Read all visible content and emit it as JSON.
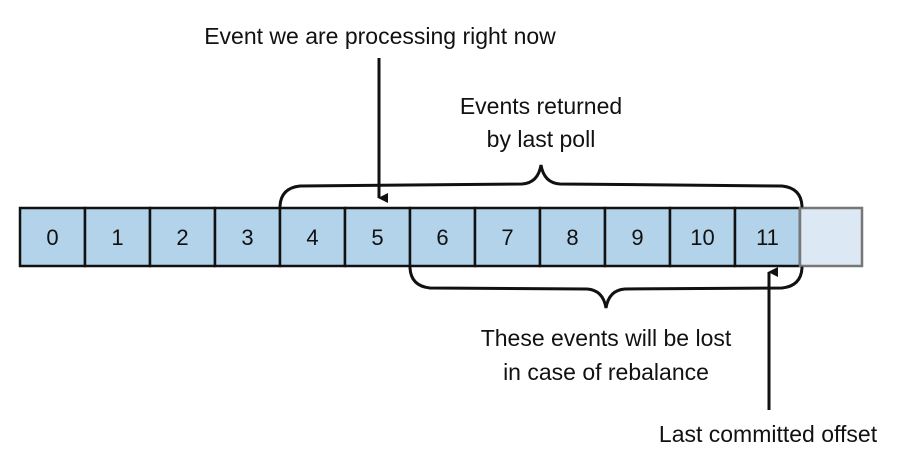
{
  "diagram": {
    "offsets": [
      "0",
      "1",
      "2",
      "3",
      "4",
      "5",
      "6",
      "7",
      "8",
      "9",
      "10",
      "11"
    ],
    "empty_slot": "",
    "labels": {
      "processing": "Event we are processing right now",
      "returned_line1": "Events returned",
      "returned_line2": "by last poll",
      "lost_line1": "These events will be lost",
      "lost_line2": "in case of rebalance",
      "committed": "Last committed offset"
    },
    "colors": {
      "cell_fill": "#b3d3ea",
      "empty_fill": "#dce8f3",
      "stroke": "#111111",
      "empty_stroke": "#777777"
    }
  }
}
